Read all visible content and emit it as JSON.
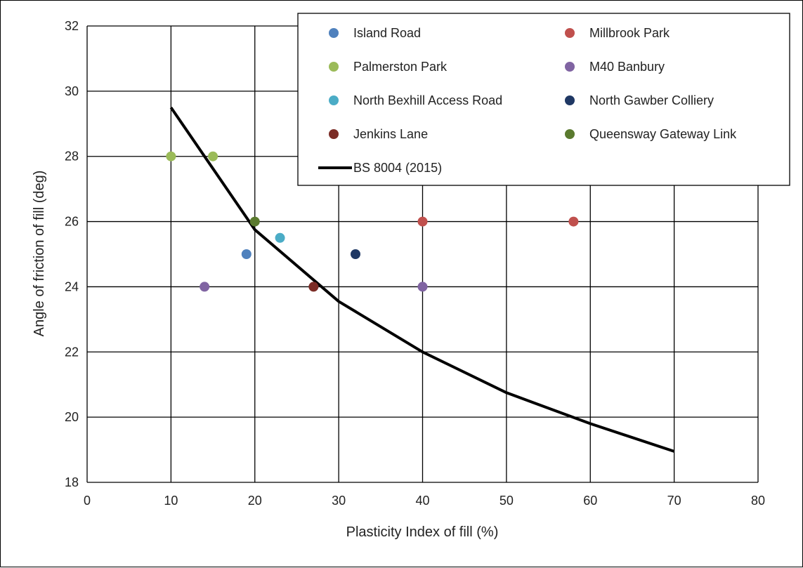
{
  "chart_data": {
    "type": "scatter",
    "xlabel": "Plasticity Index of fill (%)",
    "ylabel": "Angle of  friction of fill (deg)",
    "xlim": [
      0,
      80
    ],
    "ylim": [
      18,
      32
    ],
    "x_ticks": [
      "0",
      "10",
      "20",
      "30",
      "40",
      "50",
      "60",
      "70",
      "80"
    ],
    "y_ticks": [
      "18",
      "20",
      "22",
      "24",
      "26",
      "28",
      "30",
      "32"
    ],
    "grid": true,
    "legend_position": "top-right",
    "series": [
      {
        "name": "Island Road",
        "color": "#4F81BD",
        "points": [
          [
            19,
            25
          ]
        ]
      },
      {
        "name": "Millbrook Park",
        "color": "#C0504D",
        "points": [
          [
            40,
            26
          ],
          [
            58,
            26
          ]
        ]
      },
      {
        "name": "Palmerston Park",
        "color": "#9BBB59",
        "points": [
          [
            10,
            28
          ],
          [
            15,
            28
          ]
        ]
      },
      {
        "name": "M40 Banbury",
        "color": "#8064A2",
        "points": [
          [
            14,
            24
          ],
          [
            40,
            24
          ]
        ]
      },
      {
        "name": "North Bexhill Access Road",
        "color": "#4BACC6",
        "points": [
          [
            23,
            25.5
          ]
        ]
      },
      {
        "name": "North Gawber Colliery",
        "color": "#1F3864",
        "points": [
          [
            32,
            25
          ]
        ]
      },
      {
        "name": "Jenkins Lane",
        "color": "#7B2C26",
        "points": [
          [
            27,
            24
          ]
        ]
      },
      {
        "name": "Queensway Gateway Link",
        "color": "#5A7A2E",
        "points": [
          [
            20,
            26
          ]
        ]
      }
    ],
    "line_series": {
      "name": "BS 8004 (2015)",
      "color": "#000000",
      "points": [
        [
          10,
          29.5
        ],
        [
          20,
          25.75
        ],
        [
          30,
          23.55
        ],
        [
          40,
          22.0
        ],
        [
          50,
          20.75
        ],
        [
          60,
          19.8
        ],
        [
          70,
          18.95
        ]
      ]
    }
  }
}
